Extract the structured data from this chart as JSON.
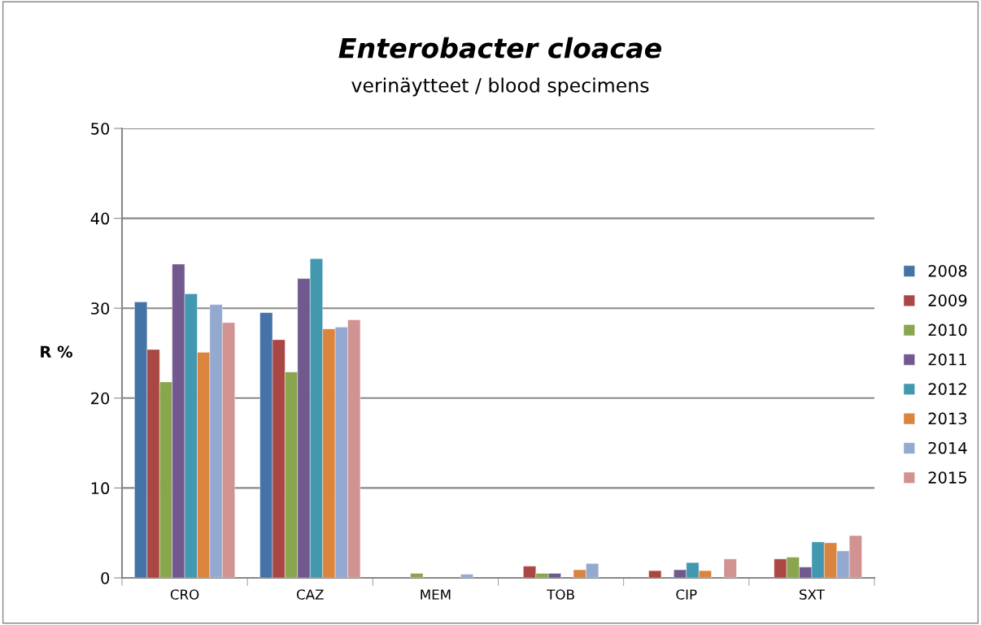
{
  "chart_data": {
    "type": "bar",
    "title": "Enterobacter cloacae",
    "subtitle": "verinäytteet / blood specimens",
    "ylabel": "R %",
    "categories": [
      "CRO",
      "CAZ",
      "MEM",
      "TOB",
      "CIP",
      "SXT"
    ],
    "series": [
      {
        "name": "2008",
        "color": "#4572a7",
        "values": [
          30.7,
          29.5,
          null,
          null,
          null,
          null
        ]
      },
      {
        "name": "2009",
        "color": "#aa4643",
        "values": [
          25.4,
          26.5,
          null,
          1.3,
          0.8,
          2.1
        ]
      },
      {
        "name": "2010",
        "color": "#89a54e",
        "values": [
          21.8,
          22.9,
          0.5,
          0.5,
          null,
          2.3
        ]
      },
      {
        "name": "2011",
        "color": "#71588f",
        "values": [
          34.9,
          33.3,
          null,
          0.5,
          0.9,
          1.2
        ]
      },
      {
        "name": "2012",
        "color": "#4198af",
        "values": [
          31.6,
          35.5,
          null,
          null,
          1.7,
          4.0
        ]
      },
      {
        "name": "2013",
        "color": "#db843d",
        "values": [
          25.1,
          27.7,
          null,
          0.9,
          0.8,
          3.9
        ]
      },
      {
        "name": "2014",
        "color": "#93a9cf",
        "values": [
          30.4,
          27.9,
          0.4,
          1.6,
          null,
          3.0
        ]
      },
      {
        "name": "2015",
        "color": "#d19392",
        "values": [
          28.4,
          28.7,
          null,
          null,
          2.1,
          4.7
        ]
      }
    ],
    "ylim": [
      0,
      50
    ],
    "yticks": [
      0,
      10,
      20,
      30,
      40,
      50
    ],
    "grid": "y",
    "legend": "right"
  }
}
